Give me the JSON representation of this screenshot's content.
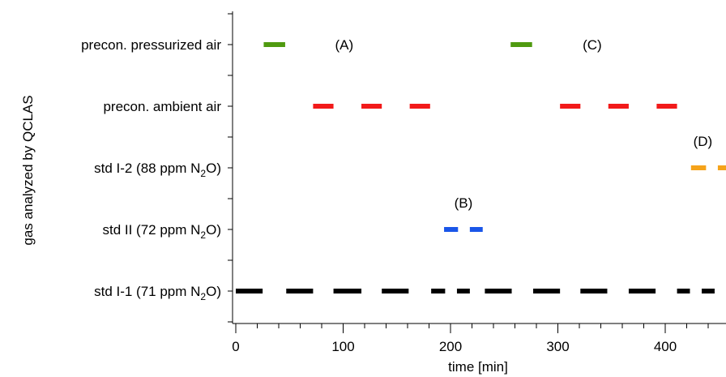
{
  "chart_data": {
    "type": "timeline",
    "title": "",
    "xlabel": "time [min]",
    "ylabel": "gas analyzed by QCLAS",
    "xlim": [
      -3,
      458
    ],
    "x_ticks": [
      0,
      100,
      200,
      300,
      400
    ],
    "categories": [
      {
        "label": "std I-1 (71 ppm N",
        "sub": "2",
        "tail": "O)"
      },
      {
        "label": "std II (72 ppm N",
        "sub": "2",
        "tail": "O)"
      },
      {
        "label": "std I-2 (88 ppm N",
        "sub": "2",
        "tail": "O)"
      },
      {
        "label": "precon. ambient air",
        "sub": "",
        "tail": ""
      },
      {
        "label": "precon. pressurized air",
        "sub": "",
        "tail": ""
      }
    ],
    "series": [
      {
        "category_index": 0,
        "color": "#000000",
        "segments": [
          [
            0,
            25
          ],
          [
            47,
            72
          ],
          [
            91,
            117
          ],
          [
            136,
            161
          ],
          [
            182,
            195
          ],
          [
            206,
            218
          ],
          [
            232,
            257
          ],
          [
            277,
            302
          ],
          [
            321,
            346
          ],
          [
            366,
            391
          ],
          [
            411,
            423
          ],
          [
            434,
            446
          ]
        ]
      },
      {
        "category_index": 1,
        "color": "#1a56e8",
        "segments": [
          [
            194,
            207
          ],
          [
            218,
            230
          ]
        ]
      },
      {
        "category_index": 2,
        "color": "#f5a31a",
        "segments": [
          [
            424,
            438
          ],
          [
            449,
            460
          ]
        ]
      },
      {
        "category_index": 3,
        "color": "#f21a1a",
        "segments": [
          [
            72,
            91
          ],
          [
            117,
            136
          ],
          [
            162,
            181
          ],
          [
            302,
            321
          ],
          [
            347,
            366
          ],
          [
            392,
            411
          ]
        ]
      },
      {
        "category_index": 4,
        "color": "#4f9a10",
        "segments": [
          [
            26,
            46
          ],
          [
            256,
            276
          ]
        ]
      }
    ],
    "annotations": [
      {
        "text": "(A)",
        "x": 101,
        "category_index": 4,
        "offset": "on-row"
      },
      {
        "text": "(B)",
        "x": 212,
        "category_index": 1,
        "offset": "above"
      },
      {
        "text": "(C)",
        "x": 332,
        "category_index": 4,
        "offset": "on-row"
      },
      {
        "text": "(D)",
        "x": 435,
        "category_index": 2,
        "offset": "above"
      }
    ]
  }
}
